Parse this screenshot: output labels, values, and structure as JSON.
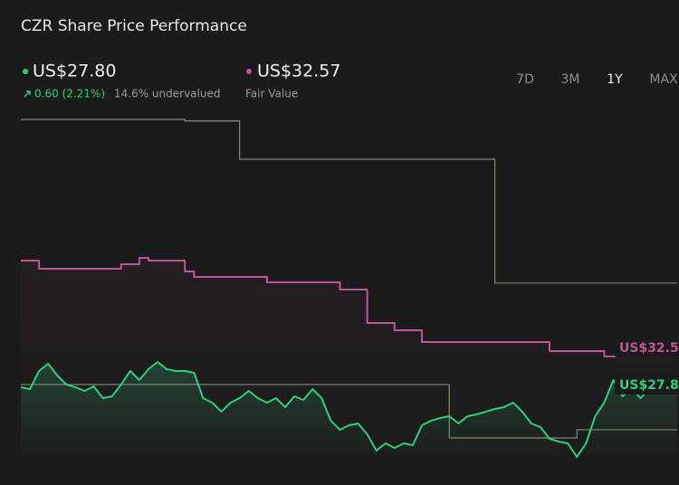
{
  "header": {
    "title": "CZR Share Price Performance",
    "price": "US$27.80",
    "change": "0.60 (2.21%)",
    "valuation": "14.6% undervalued",
    "fair_value": "US$32.57",
    "fair_value_label": "Fair Value"
  },
  "range_buttons": [
    "7D",
    "3M",
    "1Y",
    "MAX"
  ],
  "selected_range_index": 2,
  "chart_data": {
    "type": "line",
    "ylim": [
      18.3,
      68.05
    ],
    "series": [
      {
        "color": "#8a8876",
        "step": true,
        "values": [
          65.3,
          65.3,
          65.3,
          65.3,
          65.3,
          65.3,
          65.3,
          65.3,
          65.3,
          65.3,
          65.3,
          65.3,
          65.3,
          65.3,
          65.3,
          65.3,
          65.3,
          65.3,
          65.1,
          65.1,
          65.1,
          65.1,
          65.1,
          65.1,
          59.8,
          59.8,
          59.8,
          59.8,
          59.8,
          59.8,
          59.8,
          59.8,
          59.8,
          59.8,
          59.8,
          59.8,
          59.8,
          59.8,
          59.8,
          59.8,
          59.8,
          59.8,
          59.8,
          59.8,
          59.8,
          59.8,
          59.8,
          59.8,
          59.8,
          59.8,
          59.8,
          59.8,
          42.7,
          42.7,
          42.7,
          42.7,
          42.7,
          42.7,
          42.7,
          42.7,
          42.7,
          42.7,
          42.7,
          42.7,
          42.7,
          42.7,
          42.7,
          42.7,
          42.7,
          42.7,
          42.7,
          42.7,
          42.7
        ]
      },
      {
        "color": "#8a8876",
        "step": true,
        "values": [
          28.68,
          28.68,
          28.68,
          28.68,
          28.68,
          28.68,
          28.68,
          28.68,
          28.68,
          28.68,
          28.68,
          28.68,
          28.68,
          28.68,
          28.68,
          28.68,
          28.68,
          28.68,
          28.68,
          28.68,
          28.68,
          28.68,
          28.68,
          28.68,
          28.68,
          28.68,
          28.68,
          28.68,
          28.68,
          28.68,
          28.68,
          28.68,
          28.68,
          28.68,
          28.68,
          28.68,
          28.68,
          28.68,
          28.68,
          28.68,
          28.68,
          28.68,
          28.68,
          28.68,
          28.68,
          28.68,
          28.68,
          21.3,
          21.3,
          21.3,
          21.3,
          21.3,
          21.3,
          21.3,
          21.3,
          21.3,
          21.3,
          21.3,
          21.3,
          21.3,
          21.3,
          22.43,
          22.43,
          22.43,
          22.43,
          22.43,
          22.43,
          22.43,
          22.43,
          22.43,
          22.43,
          22.43,
          22.43
        ]
      },
      {
        "color": "#c2549a",
        "step": true,
        "fill": true,
        "values": [
          45.8,
          45.8,
          44.68,
          44.68,
          44.68,
          44.68,
          44.68,
          44.68,
          44.68,
          44.68,
          44.68,
          45.3,
          45.3,
          46.18,
          45.8,
          45.8,
          45.8,
          45.8,
          44.3,
          43.55,
          43.55,
          43.55,
          43.55,
          43.55,
          43.55,
          43.55,
          43.55,
          42.8,
          42.8,
          42.8,
          42.8,
          42.8,
          42.8,
          42.8,
          42.8,
          41.8,
          41.8,
          41.8,
          37.18,
          37.18,
          37.18,
          36.18,
          36.18,
          36.18,
          34.55,
          34.55,
          34.55,
          34.55,
          34.55,
          34.55,
          34.55,
          34.55,
          34.55,
          34.55,
          34.55,
          34.55,
          34.55,
          34.55,
          33.3,
          33.3,
          33.3,
          33.3,
          33.3,
          33.3,
          32.57,
          32.57,
          32.57,
          32.57,
          32.57,
          32.57,
          32.57,
          32.57,
          32.57
        ]
      },
      {
        "color": "#2fcf7f",
        "step": false,
        "fill": true,
        "values": [
          28.3,
          28.05,
          30.55,
          31.55,
          29.93,
          28.68,
          28.3,
          27.8,
          28.43,
          26.8,
          27.05,
          28.68,
          30.55,
          29.3,
          30.8,
          31.8,
          30.8,
          30.55,
          30.55,
          30.3,
          26.8,
          26.18,
          24.93,
          26.18,
          26.8,
          27.8,
          26.8,
          26.18,
          26.8,
          25.55,
          27.05,
          26.55,
          28.05,
          26.8,
          23.68,
          22.43,
          23.05,
          23.3,
          21.8,
          19.55,
          20.55,
          19.93,
          20.55,
          20.3,
          23.05,
          23.68,
          24.05,
          24.3,
          23.3,
          24.3,
          24.55,
          24.93,
          25.3,
          25.55,
          26.18,
          24.93,
          23.3,
          22.8,
          21.18,
          20.8,
          20.55,
          18.68,
          20.55,
          24.3,
          26.18,
          29.3,
          27.05,
          28.05,
          26.8,
          28.3,
          27.43,
          28.05,
          27.8
        ]
      }
    ]
  }
}
